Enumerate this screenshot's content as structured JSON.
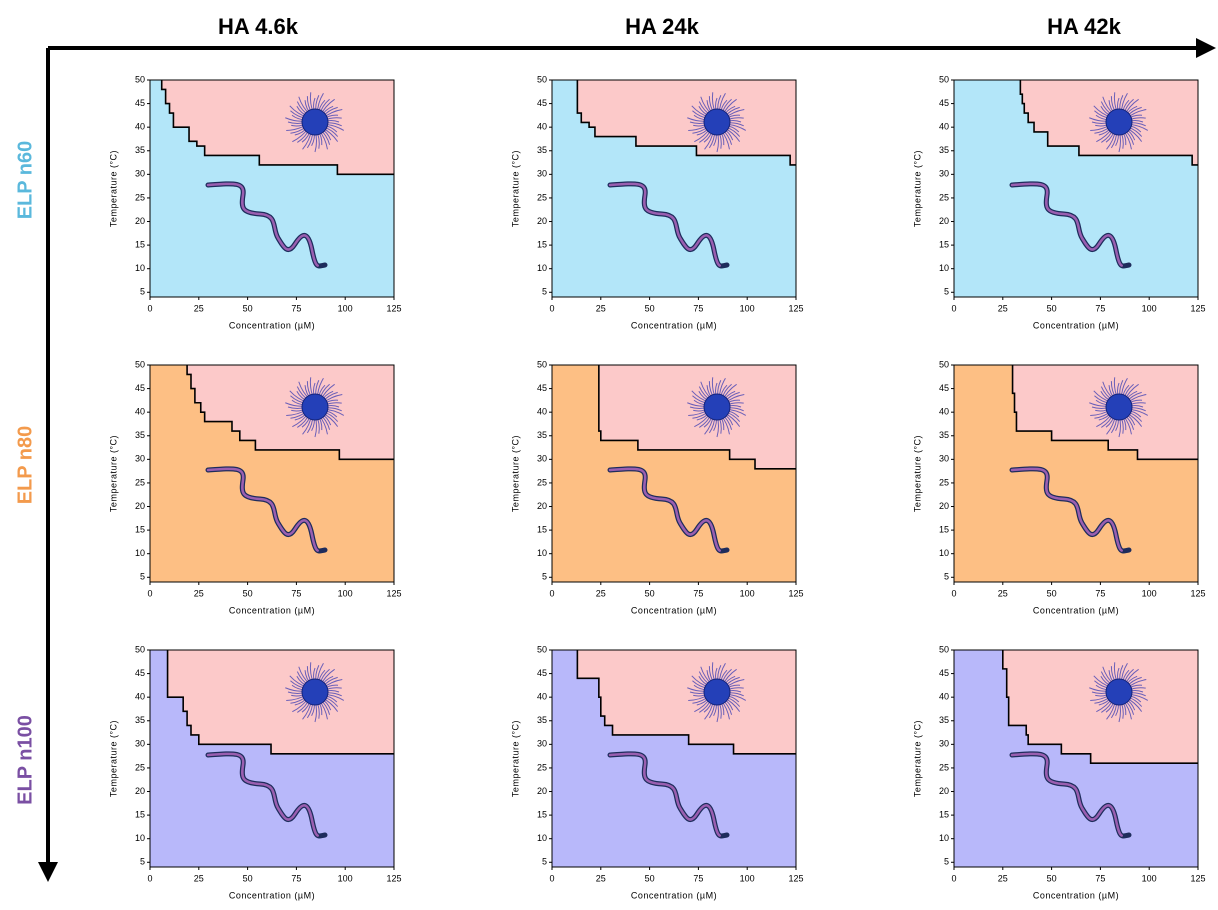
{
  "column_labels": [
    "HA 4.6k",
    "HA 24k",
    "HA 42k"
  ],
  "row_labels": [
    {
      "text": "ELP n60",
      "color": "#5ab8dc"
    },
    {
      "text": "ELP n80",
      "color": "#f39a4c"
    },
    {
      "text": "ELP n100",
      "color": "#7a4fa3"
    }
  ],
  "chart_data": [
    {
      "type": "phase",
      "x": [
        6,
        6,
        8,
        8,
        10,
        10,
        12,
        12,
        20,
        20,
        24,
        24,
        28,
        28,
        56,
        56,
        96,
        96,
        125
      ],
      "values": [
        50,
        48,
        48,
        45,
        45,
        43,
        43,
        40,
        40,
        37,
        37,
        36,
        36,
        34,
        34,
        32,
        32,
        30,
        30
      ],
      "below_color": "#b3e6f9",
      "above_color": "#fcc9c9",
      "xlim": [
        0,
        125
      ],
      "ylim": [
        4,
        50
      ],
      "xticks": [
        0,
        25,
        50,
        75,
        100,
        125
      ],
      "yticks": [
        5,
        10,
        15,
        20,
        25,
        30,
        35,
        40,
        45,
        50
      ],
      "xlabel": "Concentration (µM)",
      "ylabel": "Temperature (°C)"
    },
    {
      "type": "phase",
      "x": [
        13,
        13,
        15,
        15,
        19,
        19,
        22,
        22,
        43,
        43,
        74,
        74,
        122,
        122,
        125
      ],
      "values": [
        50,
        43,
        43,
        41,
        41,
        40,
        40,
        38,
        38,
        36,
        36,
        34,
        34,
        32,
        32
      ],
      "below_color": "#b3e6f9",
      "above_color": "#fcc9c9",
      "xlim": [
        0,
        125
      ],
      "ylim": [
        4,
        50
      ],
      "xticks": [
        0,
        25,
        50,
        75,
        100,
        125
      ],
      "yticks": [
        5,
        10,
        15,
        20,
        25,
        30,
        35,
        40,
        45,
        50
      ],
      "xlabel": "Concentration (µM)",
      "ylabel": "Temperature (°C)"
    },
    {
      "type": "phase",
      "x": [
        34,
        34,
        35,
        35,
        36,
        36,
        38,
        38,
        41,
        41,
        48,
        48,
        64,
        64,
        122,
        122,
        125
      ],
      "values": [
        50,
        47,
        47,
        45,
        45,
        43,
        43,
        41,
        41,
        39,
        39,
        36,
        36,
        34,
        34,
        32,
        32
      ],
      "below_color": "#b3e6f9",
      "above_color": "#fcc9c9",
      "xlim": [
        0,
        125
      ],
      "ylim": [
        4,
        50
      ],
      "xticks": [
        0,
        25,
        50,
        75,
        100,
        125
      ],
      "yticks": [
        5,
        10,
        15,
        20,
        25,
        30,
        35,
        40,
        45,
        50
      ],
      "xlabel": "Concentration (µM)",
      "ylabel": "Temperature (°C)"
    },
    {
      "type": "phase",
      "x": [
        19,
        19,
        21,
        21,
        23,
        23,
        26,
        26,
        28,
        28,
        42,
        42,
        46,
        46,
        54,
        54,
        97,
        97,
        125
      ],
      "values": [
        50,
        48,
        48,
        45,
        45,
        42,
        42,
        40,
        40,
        38,
        38,
        36,
        36,
        34,
        34,
        32,
        32,
        30,
        30
      ],
      "below_color": "#fdbf84",
      "above_color": "#fcc9c9",
      "xlim": [
        0,
        125
      ],
      "ylim": [
        4,
        50
      ],
      "xticks": [
        0,
        25,
        50,
        75,
        100,
        125
      ],
      "yticks": [
        5,
        10,
        15,
        20,
        25,
        30,
        35,
        40,
        45,
        50
      ],
      "xlabel": "Concentration (µM)",
      "ylabel": "Temperature (°C)"
    },
    {
      "type": "phase",
      "x": [
        24,
        24,
        25,
        25,
        44,
        44,
        91,
        91,
        104,
        104,
        125
      ],
      "values": [
        50,
        36,
        36,
        34,
        34,
        32,
        32,
        30,
        30,
        28,
        28
      ],
      "below_color": "#fdbf84",
      "above_color": "#fcc9c9",
      "xlim": [
        0,
        125
      ],
      "ylim": [
        4,
        50
      ],
      "xticks": [
        0,
        25,
        50,
        75,
        100,
        125
      ],
      "yticks": [
        5,
        10,
        15,
        20,
        25,
        30,
        35,
        40,
        45,
        50
      ],
      "xlabel": "Concentration (µM)",
      "ylabel": "Temperature (°C)"
    },
    {
      "type": "phase",
      "x": [
        30,
        30,
        31,
        31,
        32,
        32,
        50,
        50,
        79,
        79,
        94,
        94,
        125
      ],
      "values": [
        50,
        44,
        44,
        40,
        40,
        36,
        36,
        34,
        34,
        32,
        32,
        30,
        30
      ],
      "below_color": "#fdbf84",
      "above_color": "#fcc9c9",
      "xlim": [
        0,
        125
      ],
      "ylim": [
        4,
        50
      ],
      "xticks": [
        0,
        25,
        50,
        75,
        100,
        125
      ],
      "yticks": [
        5,
        10,
        15,
        20,
        25,
        30,
        35,
        40,
        45,
        50
      ],
      "xlabel": "Concentration (µM)",
      "ylabel": "Temperature (°C)"
    },
    {
      "type": "phase",
      "x": [
        9,
        9,
        17,
        17,
        19,
        19,
        21,
        21,
        25,
        25,
        62,
        62,
        125
      ],
      "values": [
        50,
        40,
        40,
        37,
        37,
        34,
        34,
        32,
        32,
        30,
        30,
        28,
        28
      ],
      "below_color": "#b8b8fa",
      "above_color": "#fcc9c9",
      "xlim": [
        0,
        125
      ],
      "ylim": [
        4,
        50
      ],
      "xticks": [
        0,
        25,
        50,
        75,
        100,
        125
      ],
      "yticks": [
        5,
        10,
        15,
        20,
        25,
        30,
        35,
        40,
        45,
        50
      ],
      "xlabel": "Concentration (µM)",
      "ylabel": "Temperature (°C)"
    },
    {
      "type": "phase",
      "x": [
        13,
        13,
        24,
        24,
        25,
        25,
        27,
        27,
        31,
        31,
        70,
        70,
        93,
        93,
        125
      ],
      "values": [
        50,
        44,
        44,
        40,
        40,
        36,
        36,
        34,
        34,
        32,
        32,
        30,
        30,
        28,
        28
      ],
      "below_color": "#b8b8fa",
      "above_color": "#fcc9c9",
      "xlim": [
        0,
        125
      ],
      "ylim": [
        4,
        50
      ],
      "xticks": [
        0,
        25,
        50,
        75,
        100,
        125
      ],
      "yticks": [
        5,
        10,
        15,
        20,
        25,
        30,
        35,
        40,
        45,
        50
      ],
      "xlabel": "Concentration (µM)",
      "ylabel": "Temperature (°C)"
    },
    {
      "type": "phase",
      "x": [
        25,
        25,
        27,
        27,
        28,
        28,
        37,
        37,
        38,
        38,
        55,
        55,
        70,
        70,
        125
      ],
      "values": [
        50,
        46,
        46,
        40,
        40,
        34,
        34,
        32,
        32,
        30,
        30,
        28,
        28,
        26,
        26
      ],
      "below_color": "#b8b8fa",
      "above_color": "#fcc9c9",
      "xlim": [
        0,
        125
      ],
      "ylim": [
        4,
        50
      ],
      "xticks": [
        0,
        25,
        50,
        75,
        100,
        125
      ],
      "yticks": [
        5,
        10,
        15,
        20,
        25,
        30,
        35,
        40,
        45,
        50
      ],
      "xlabel": "Concentration (µM)",
      "ylabel": "Temperature (°C)"
    }
  ]
}
